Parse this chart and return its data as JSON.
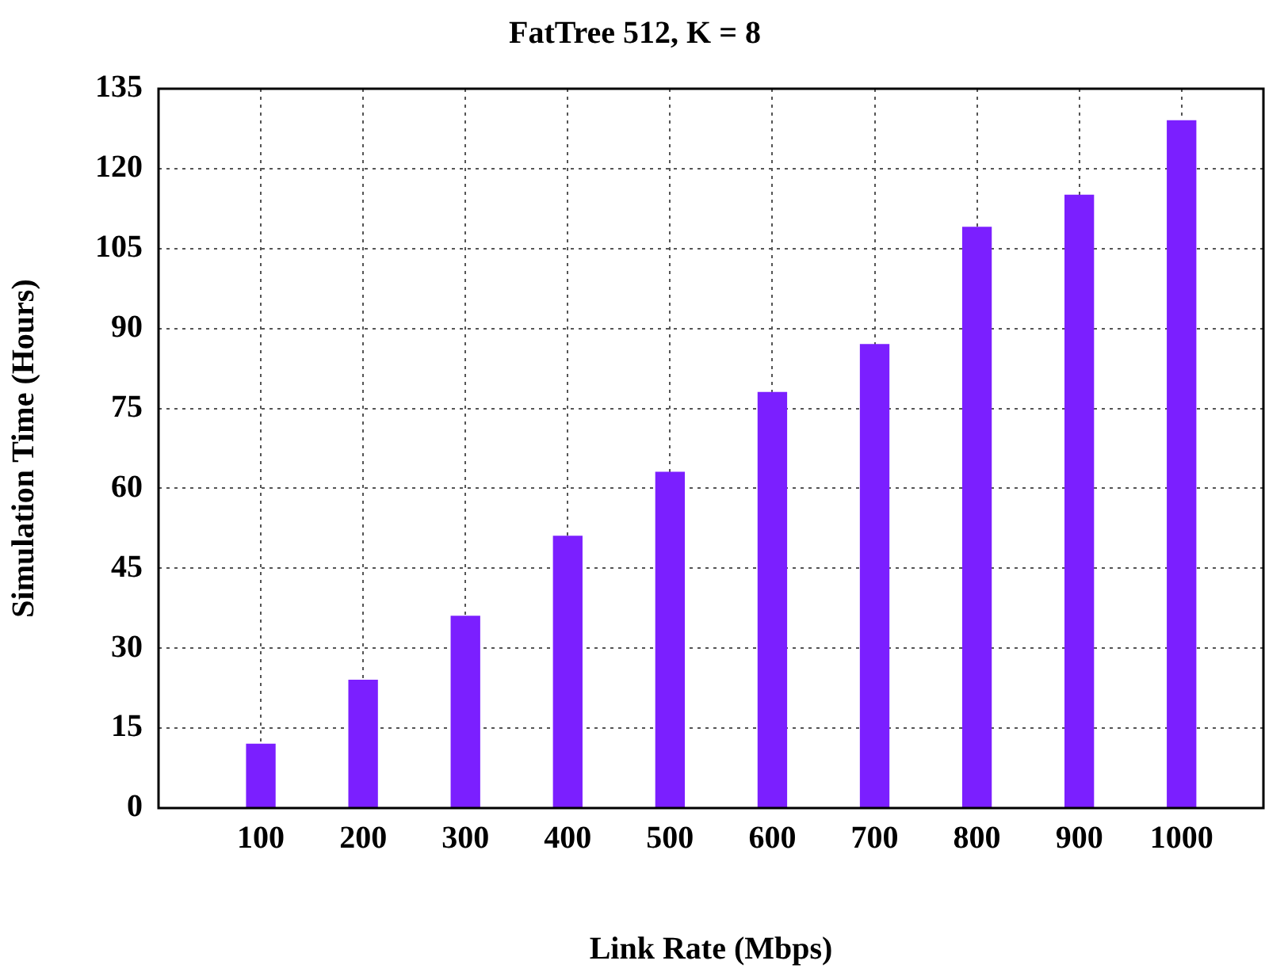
{
  "chart_data": {
    "type": "bar",
    "title": "FatTree 512, K = 8",
    "xlabel": "Link Rate (Mbps)",
    "ylabel": "Simulation Time (Hours)",
    "x": [
      100,
      200,
      300,
      400,
      500,
      600,
      700,
      800,
      900,
      1000
    ],
    "values": [
      12,
      24,
      36,
      51,
      63,
      78,
      87,
      109,
      115,
      129
    ],
    "color": "#7b1fff",
    "xlim": [
      0,
      1080
    ],
    "xticks": [
      100,
      200,
      300,
      400,
      500,
      600,
      700,
      800,
      900,
      1000
    ],
    "ylim": [
      0,
      135
    ],
    "yticks": [
      0,
      15,
      30,
      45,
      60,
      75,
      90,
      105,
      120,
      135
    ],
    "grid": true,
    "legend": false
  }
}
